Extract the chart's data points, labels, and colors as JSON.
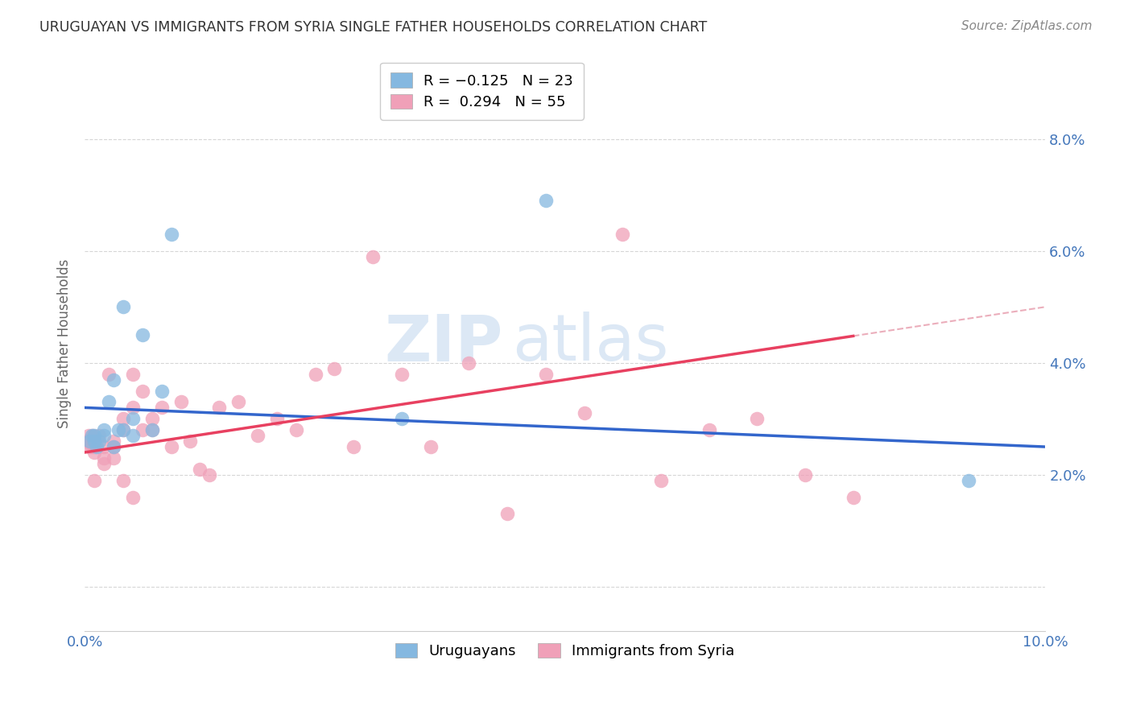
{
  "title": "URUGUAYAN VS IMMIGRANTS FROM SYRIA SINGLE FATHER HOUSEHOLDS CORRELATION CHART",
  "source": "Source: ZipAtlas.com",
  "ylabel": "Single Father Households",
  "xlim": [
    0.0,
    0.1
  ],
  "ylim": [
    -0.008,
    0.095
  ],
  "x_ticks": [
    0.0,
    0.02,
    0.04,
    0.06,
    0.08,
    0.1
  ],
  "x_tick_labels": [
    "0.0%",
    "",
    "",
    "",
    "",
    "10.0%"
  ],
  "y_ticks": [
    0.0,
    0.02,
    0.04,
    0.06,
    0.08
  ],
  "y_tick_labels": [
    "",
    "2.0%",
    "4.0%",
    "6.0%",
    "8.0%"
  ],
  "uruguayan_x": [
    0.0005,
    0.0007,
    0.001,
    0.001,
    0.0012,
    0.0015,
    0.002,
    0.002,
    0.0025,
    0.003,
    0.003,
    0.0035,
    0.004,
    0.004,
    0.005,
    0.005,
    0.006,
    0.007,
    0.008,
    0.009,
    0.033,
    0.048,
    0.092
  ],
  "uruguayan_y": [
    0.026,
    0.027,
    0.026,
    0.027,
    0.025,
    0.026,
    0.027,
    0.028,
    0.033,
    0.037,
    0.025,
    0.028,
    0.05,
    0.028,
    0.03,
    0.027,
    0.045,
    0.028,
    0.035,
    0.063,
    0.03,
    0.069,
    0.019
  ],
  "syria_x": [
    0.0003,
    0.0004,
    0.0005,
    0.0006,
    0.0007,
    0.0008,
    0.001,
    0.001,
    0.001,
    0.001,
    0.0015,
    0.002,
    0.002,
    0.002,
    0.0025,
    0.003,
    0.003,
    0.003,
    0.004,
    0.004,
    0.004,
    0.005,
    0.005,
    0.005,
    0.006,
    0.006,
    0.007,
    0.007,
    0.008,
    0.009,
    0.01,
    0.011,
    0.012,
    0.013,
    0.014,
    0.016,
    0.018,
    0.02,
    0.022,
    0.024,
    0.026,
    0.028,
    0.03,
    0.033,
    0.036,
    0.04,
    0.044,
    0.048,
    0.052,
    0.056,
    0.06,
    0.065,
    0.07,
    0.075,
    0.08
  ],
  "syria_y": [
    0.026,
    0.027,
    0.025,
    0.026,
    0.025,
    0.027,
    0.025,
    0.026,
    0.024,
    0.019,
    0.027,
    0.022,
    0.023,
    0.025,
    0.038,
    0.025,
    0.023,
    0.026,
    0.028,
    0.03,
    0.019,
    0.038,
    0.032,
    0.016,
    0.035,
    0.028,
    0.03,
    0.028,
    0.032,
    0.025,
    0.033,
    0.026,
    0.021,
    0.02,
    0.032,
    0.033,
    0.027,
    0.03,
    0.028,
    0.038,
    0.039,
    0.025,
    0.059,
    0.038,
    0.025,
    0.04,
    0.013,
    0.038,
    0.031,
    0.063,
    0.019,
    0.028,
    0.03,
    0.02,
    0.016
  ],
  "uru_color": "#85b8e0",
  "syria_color": "#f0a0b8",
  "uru_line_color": "#3366cc",
  "syria_line_color": "#e84060",
  "syria_line_dashed_color": "#e8a0b0",
  "background_color": "#ffffff",
  "grid_color": "#cccccc",
  "title_color": "#333333",
  "tick_label_color": "#4477bb",
  "watermark_zip": "ZIP",
  "watermark_atlas": "atlas",
  "watermark_color": "#dce8f5"
}
